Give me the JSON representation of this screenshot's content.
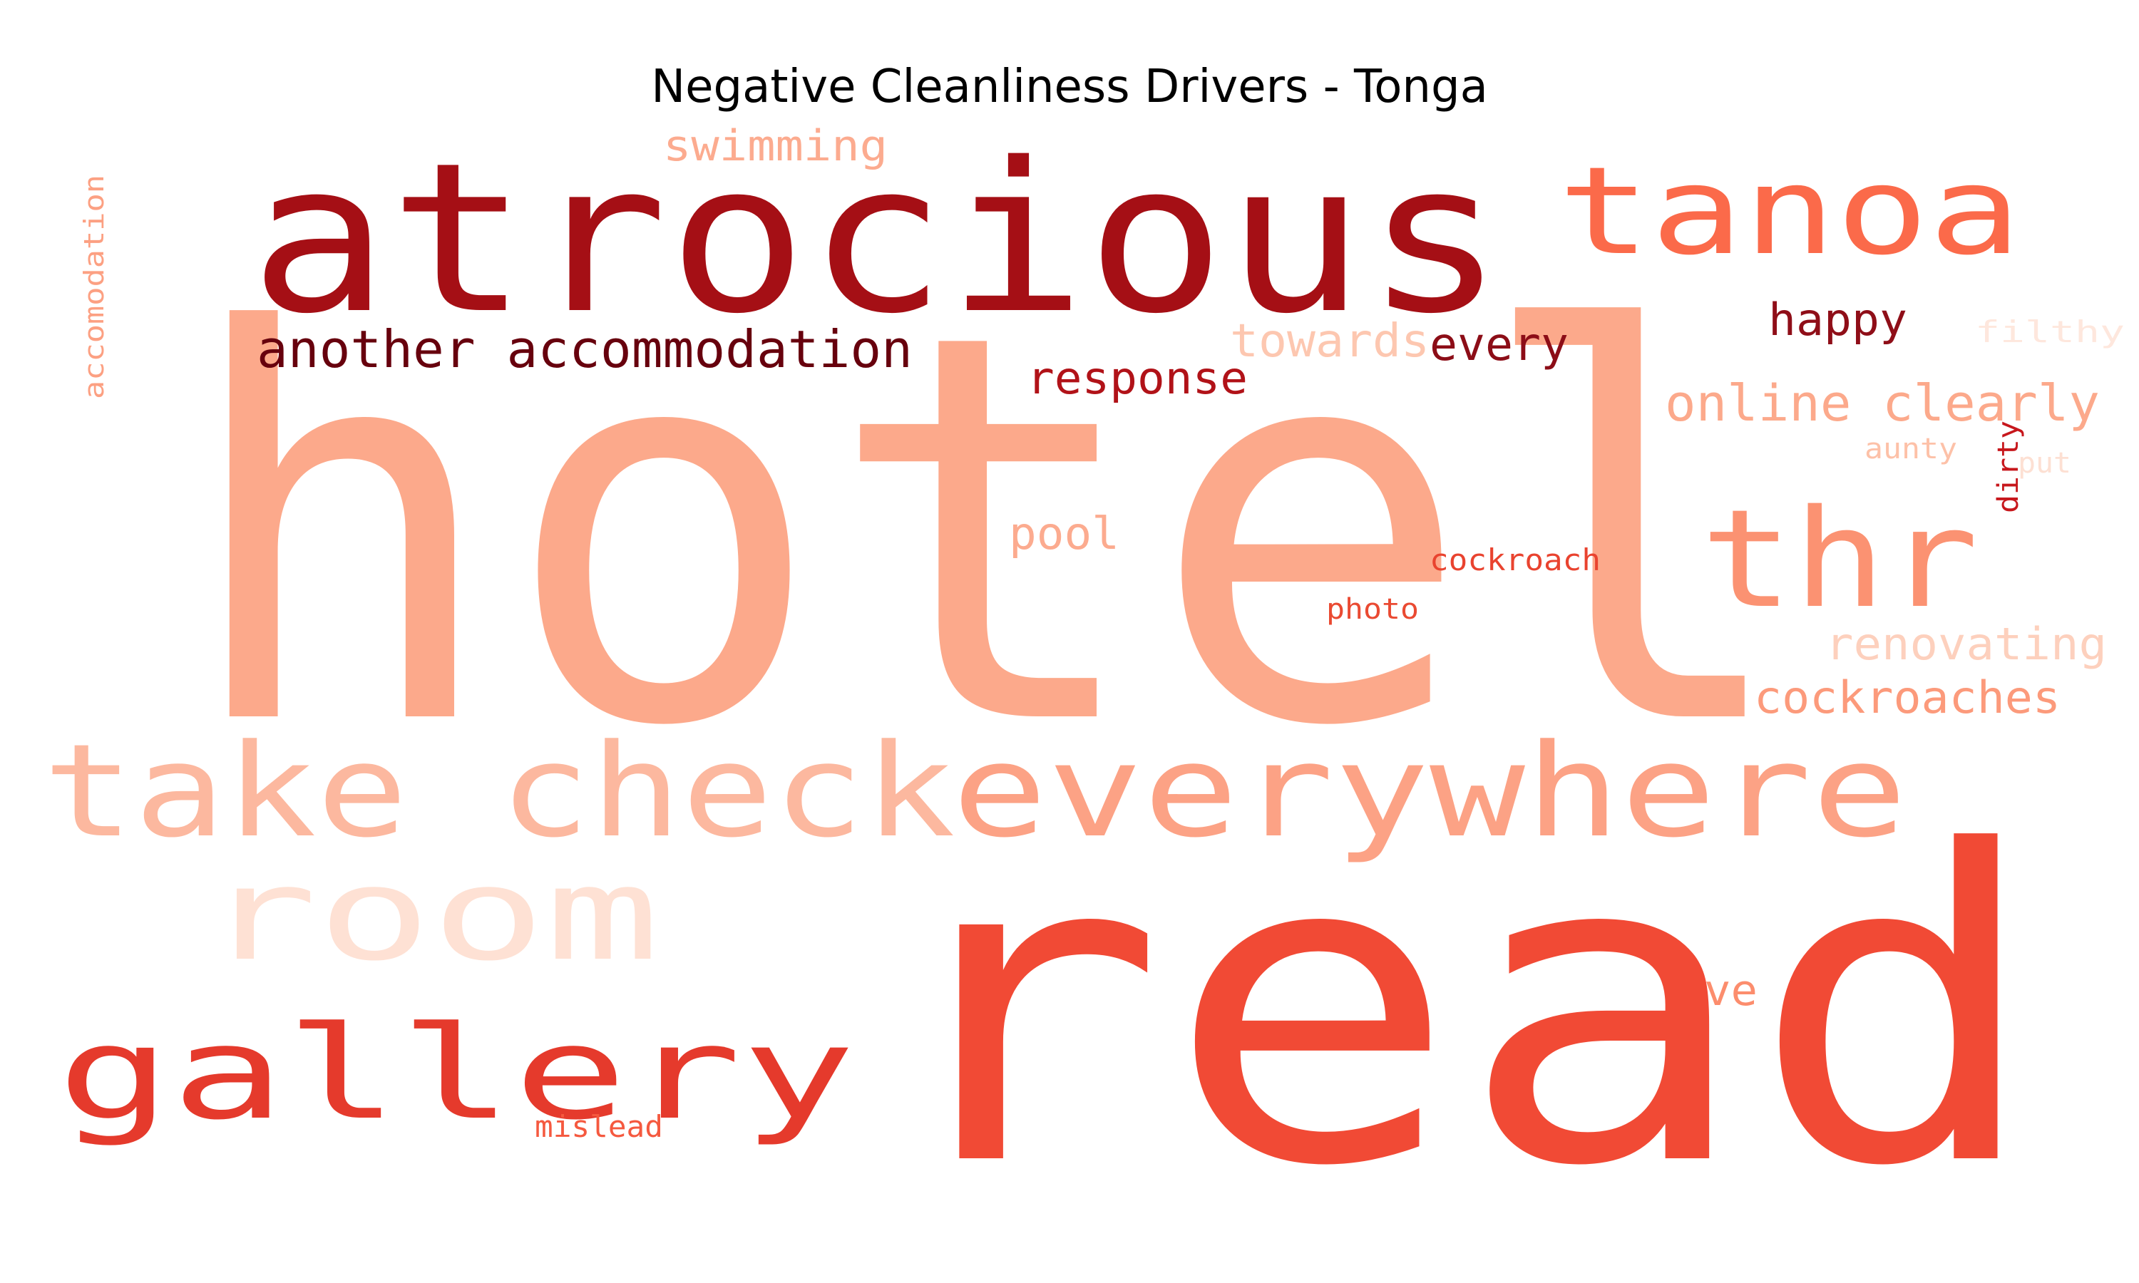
{
  "chart_data": {
    "type": "wordcloud",
    "title": "Negative Cleanliness Drivers - Tonga",
    "words": [
      {
        "text": "hotel",
        "weight": 1.0,
        "color": "#fca98b"
      },
      {
        "text": "read",
        "weight": 0.96,
        "color": "#f14a35"
      },
      {
        "text": "atrocious",
        "weight": 0.62,
        "color": "#a50f15"
      },
      {
        "text": "everywhere",
        "weight": 0.37,
        "color": "#fca285"
      },
      {
        "text": "take check",
        "weight": 0.37,
        "color": "#fcb89f"
      },
      {
        "text": "gallery",
        "weight": 0.37,
        "color": "#e53a2c"
      },
      {
        "text": "room",
        "weight": 0.37,
        "color": "#fee1d4"
      },
      {
        "text": "tanoa",
        "weight": 0.34,
        "color": "#fb6a4a"
      },
      {
        "text": "thr",
        "weight": 0.32,
        "color": "#fb9272"
      },
      {
        "text": "another accommodation",
        "weight": 0.14,
        "color": "#67000d"
      },
      {
        "text": "online clearly",
        "weight": 0.13,
        "color": "#fca98b"
      },
      {
        "text": "cockroaches",
        "weight": 0.12,
        "color": "#fc9a7b"
      },
      {
        "text": "renovating",
        "weight": 0.12,
        "color": "#fdd0bd"
      },
      {
        "text": "towards",
        "weight": 0.12,
        "color": "#fdc7b0"
      },
      {
        "text": "every",
        "weight": 0.12,
        "color": "#8c0d17"
      },
      {
        "text": "happy",
        "weight": 0.12,
        "color": "#8f0e18"
      },
      {
        "text": "response",
        "weight": 0.11,
        "color": "#b11218"
      },
      {
        "text": "swimming",
        "weight": 0.11,
        "color": "#fcab8f"
      },
      {
        "text": "pool",
        "weight": 0.11,
        "color": "#fcab8f"
      },
      {
        "text": "ve",
        "weight": 0.1,
        "color": "#fc8d6d"
      },
      {
        "text": "cockroach",
        "weight": 0.08,
        "color": "#e9432f"
      },
      {
        "text": "photo",
        "weight": 0.08,
        "color": "#ea4a32"
      },
      {
        "text": "mislead",
        "weight": 0.08,
        "color": "#f5593f"
      },
      {
        "text": "filthy",
        "weight": 0.08,
        "color": "#fee7dd"
      },
      {
        "text": "aunty",
        "weight": 0.07,
        "color": "#fdc1a8"
      },
      {
        "text": "put",
        "weight": 0.07,
        "color": "#fde0d3"
      },
      {
        "text": "dirty",
        "weight": 0.07,
        "color": "#c7171c"
      },
      {
        "text": "accomodation",
        "weight": 0.07,
        "color": "#fca082"
      }
    ]
  }
}
